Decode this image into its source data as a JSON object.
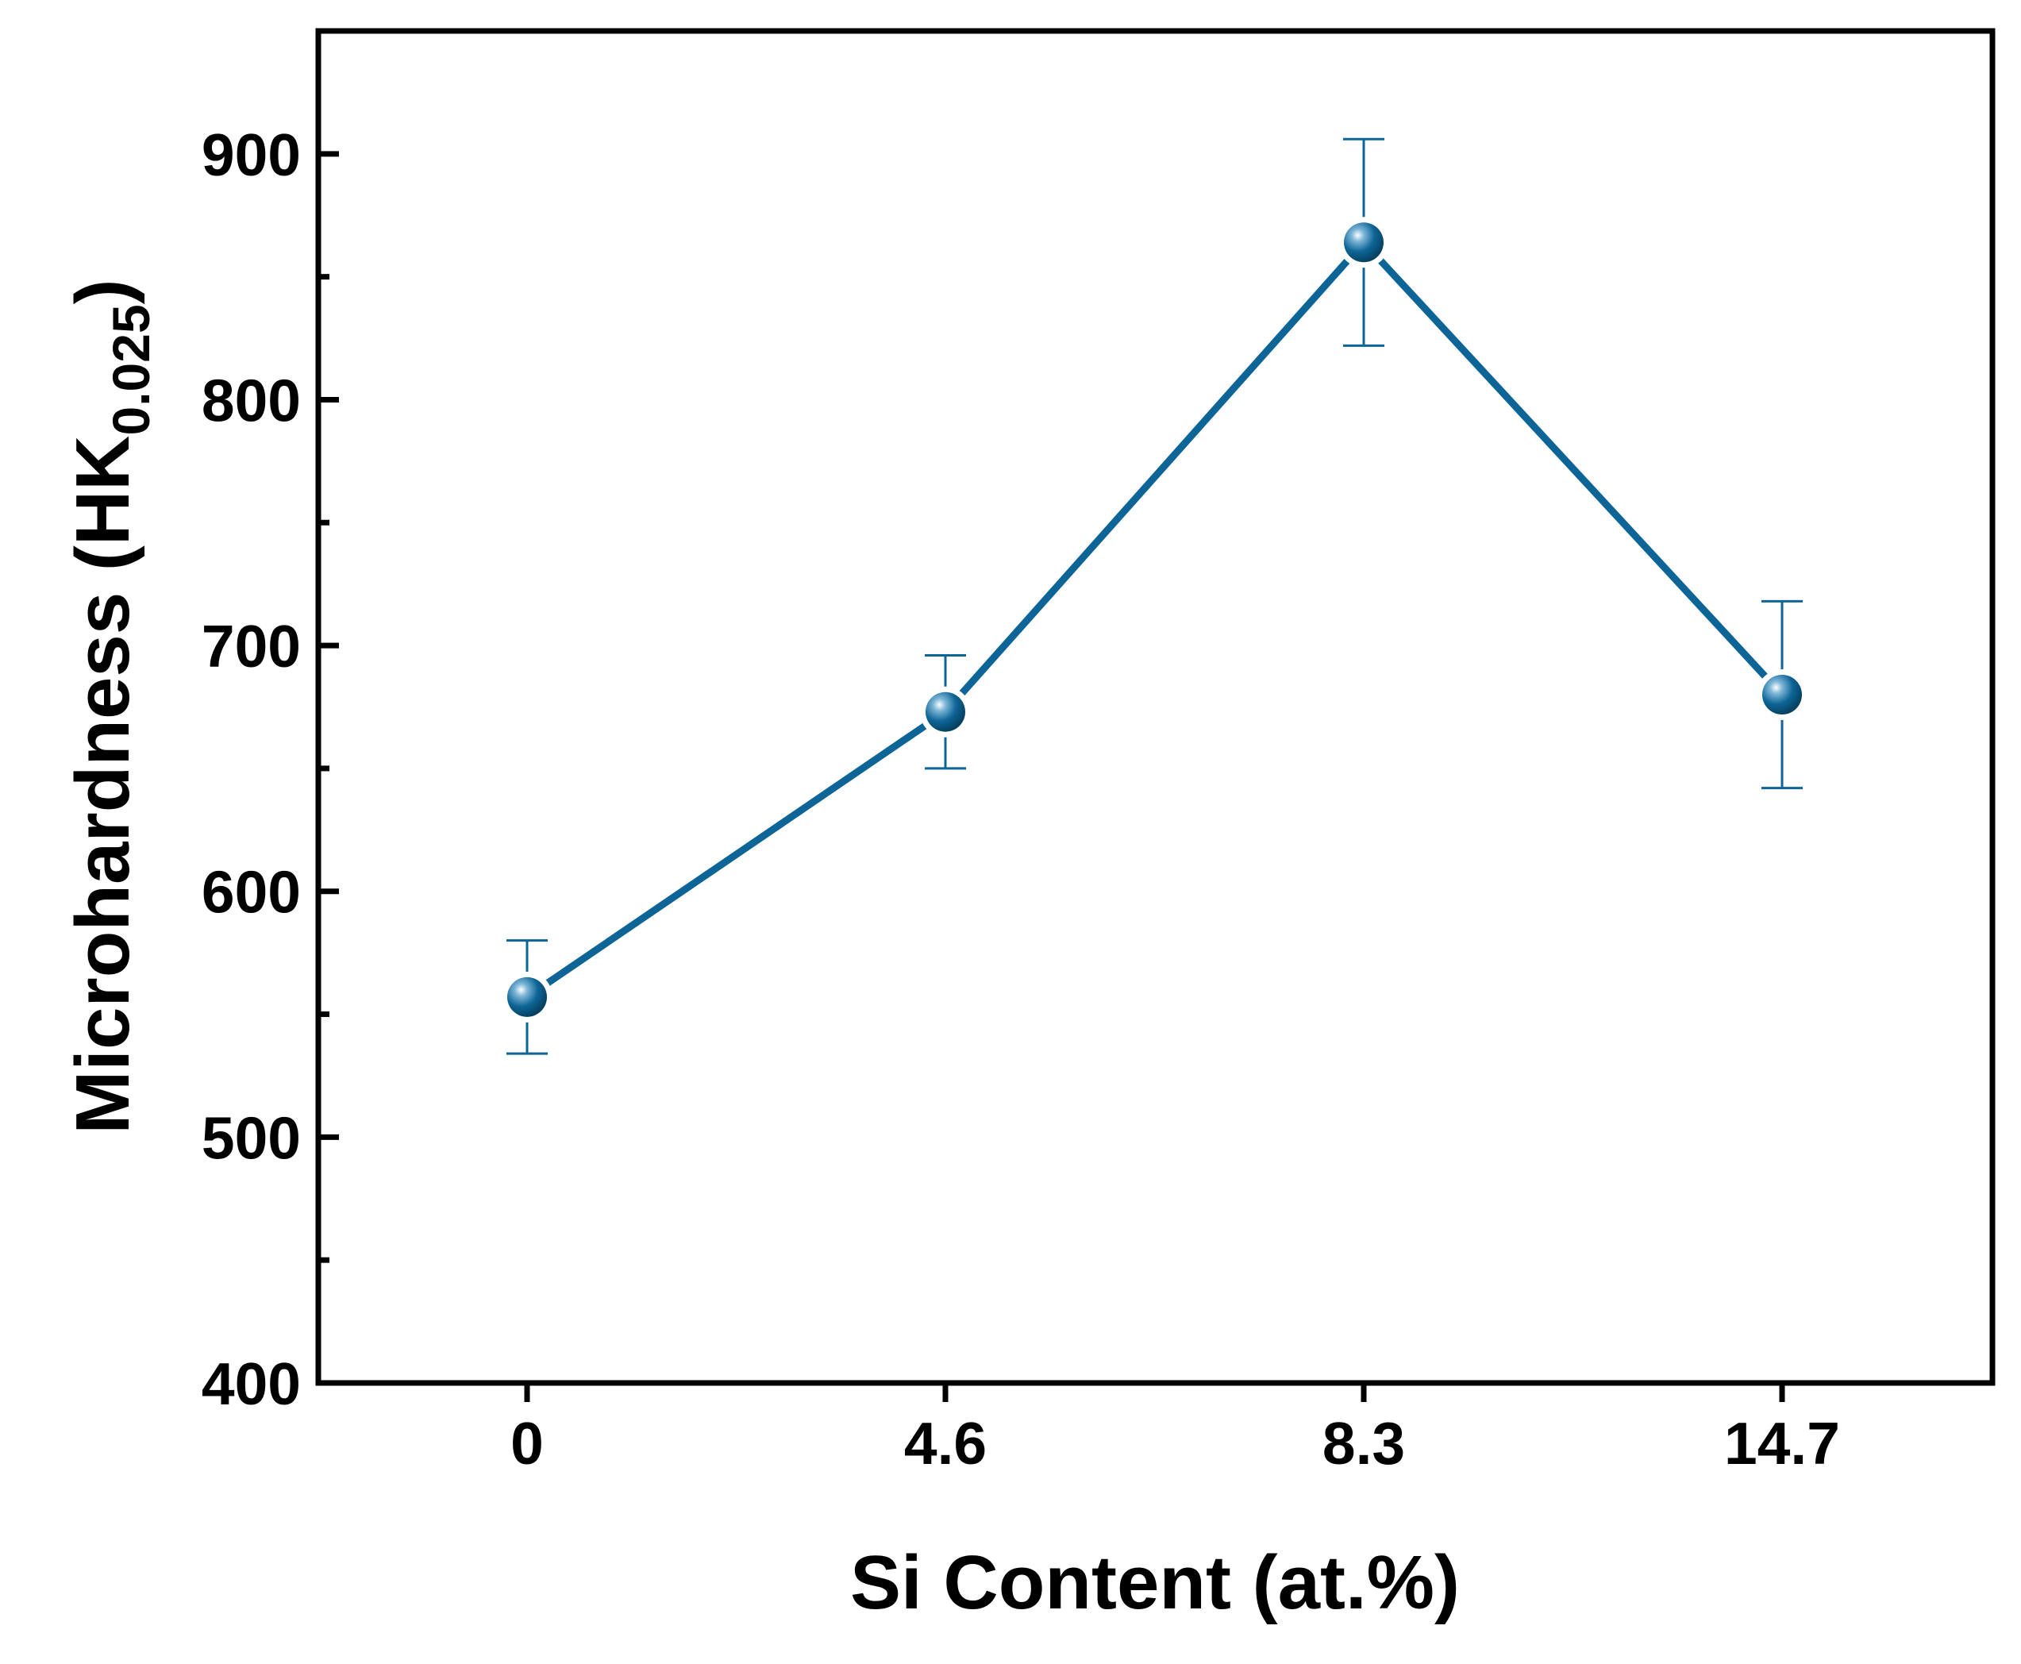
{
  "chart_data": {
    "type": "line",
    "xlabel": "Si Content (at.%)",
    "ylabel": {
      "main": "Microhardness (HK",
      "subscript": "0.025",
      "close": ")"
    },
    "categories": [
      "0",
      "4.6",
      "8.3",
      "14.7"
    ],
    "ylim": [
      400,
      950
    ],
    "yticks": [
      "400",
      "500",
      "600",
      "700",
      "800",
      "900"
    ],
    "grid": false,
    "legend": "none",
    "series": [
      {
        "values": [
          557,
          673,
          864,
          680
        ],
        "error_low": [
          534,
          650,
          822,
          642
        ],
        "error_high": [
          580,
          696,
          906,
          718
        ]
      }
    ],
    "colors": {
      "series": "#0D6597",
      "axis": "#000000"
    }
  }
}
